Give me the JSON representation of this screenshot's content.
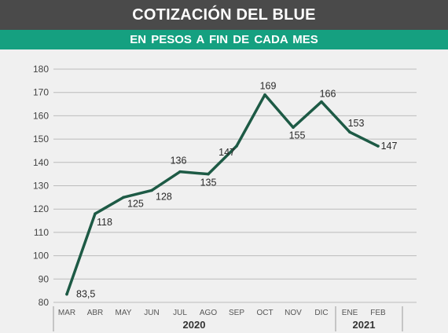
{
  "header": {
    "title": "COTIZACIÓN DEL BLUE",
    "subtitle": "EN PESOS  A FIN DE CADA MES"
  },
  "colors": {
    "title_bg": "#4a4a4a",
    "subtitle_bg": "#15a080",
    "line": "#1d5a45",
    "grid": "#bbbbbb",
    "background": "#f0f0f0"
  },
  "chart_data": {
    "type": "line",
    "title": "COTIZACIÓN DEL BLUE",
    "subtitle": "EN PESOS  A FIN DE CADA MES",
    "categories": [
      "MAR",
      "ABR",
      "MAY",
      "JUN",
      "JUL",
      "AGO",
      "SEP",
      "OCT",
      "NOV",
      "DIC",
      "ENE",
      "FEB"
    ],
    "values": [
      83.5,
      118,
      125,
      128,
      136,
      135,
      147,
      169,
      155,
      166,
      153,
      147
    ],
    "data_labels": [
      "83,5",
      "118",
      "125",
      "128",
      "136",
      "135",
      "147",
      "169",
      "155",
      "166",
      "153",
      "147"
    ],
    "y_ticks": [
      80,
      90,
      100,
      110,
      120,
      130,
      140,
      150,
      160,
      170,
      180
    ],
    "ylim": [
      80,
      180
    ],
    "year_groups": [
      {
        "label": "2020",
        "categories": [
          "MAR",
          "ABR",
          "MAY",
          "JUN",
          "JUL",
          "AGO",
          "SEP",
          "OCT",
          "NOV",
          "DIC"
        ]
      },
      {
        "label": "2021",
        "categories": [
          "ENE",
          "FEB"
        ]
      }
    ],
    "grid": true,
    "legend": "none"
  }
}
